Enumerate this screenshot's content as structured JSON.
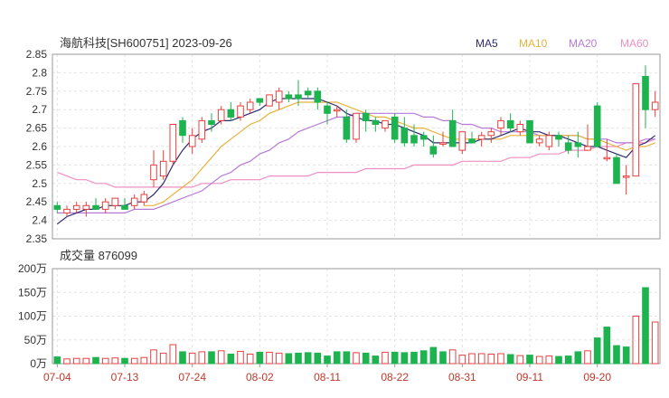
{
  "header": {
    "title": "海航科技[SH600751] 2023-09-26"
  },
  "volume_panel": {
    "label": "成交量 876099"
  },
  "colors": {
    "up": "#e8413f",
    "down": "#1db34f",
    "ma5": "#2b2b6e",
    "ma10": "#e8b23a",
    "ma20": "#b57ad6",
    "ma60": "#ee8fc3",
    "grid": "#e4e4e4",
    "axis": "#999999",
    "date_label": "#c0392b"
  },
  "chart_data": [
    {
      "type": "candlestick",
      "title": "海航科技[SH600751] 2023-09-26",
      "ylim": [
        2.35,
        2.85
      ],
      "yticks": [
        "2.85",
        "2.8",
        "2.75",
        "2.7",
        "2.65",
        "2.6",
        "2.55",
        "2.5",
        "2.45",
        "2.4",
        "2.35"
      ],
      "xticks": [
        "07-04",
        "07-13",
        "07-24",
        "08-02",
        "08-11",
        "08-22",
        "08-31",
        "09-11",
        "09-20"
      ],
      "xtick_index": [
        0,
        7,
        14,
        21,
        28,
        35,
        42,
        49,
        56
      ],
      "grid": true,
      "legend": {
        "position": "top-right",
        "entries": [
          "MA5",
          "MA10",
          "MA20",
          "MA60"
        ]
      },
      "ohlc": [
        [
          2.44,
          2.45,
          2.42,
          2.43
        ],
        [
          2.42,
          2.44,
          2.41,
          2.43
        ],
        [
          2.43,
          2.45,
          2.42,
          2.44
        ],
        [
          2.43,
          2.45,
          2.41,
          2.44
        ],
        [
          2.44,
          2.46,
          2.43,
          2.43
        ],
        [
          2.43,
          2.46,
          2.42,
          2.45
        ],
        [
          2.44,
          2.46,
          2.43,
          2.46
        ],
        [
          2.44,
          2.46,
          2.43,
          2.43
        ],
        [
          2.44,
          2.47,
          2.43,
          2.46
        ],
        [
          2.45,
          2.48,
          2.44,
          2.47
        ],
        [
          2.51,
          2.59,
          2.49,
          2.55
        ],
        [
          2.52,
          2.59,
          2.51,
          2.56
        ],
        [
          2.56,
          2.66,
          2.55,
          2.66
        ],
        [
          2.67,
          2.68,
          2.61,
          2.63
        ],
        [
          2.6,
          2.65,
          2.58,
          2.63
        ],
        [
          2.62,
          2.68,
          2.61,
          2.67
        ],
        [
          2.67,
          2.69,
          2.64,
          2.66
        ],
        [
          2.67,
          2.71,
          2.66,
          2.7
        ],
        [
          2.7,
          2.72,
          2.67,
          2.68
        ],
        [
          2.68,
          2.72,
          2.67,
          2.71
        ],
        [
          2.7,
          2.73,
          2.69,
          2.72
        ],
        [
          2.73,
          2.73,
          2.71,
          2.72
        ],
        [
          2.71,
          2.74,
          2.71,
          2.74
        ],
        [
          2.72,
          2.76,
          2.7,
          2.75
        ],
        [
          2.74,
          2.75,
          2.72,
          2.73
        ],
        [
          2.74,
          2.78,
          2.71,
          2.73
        ],
        [
          2.75,
          2.76,
          2.73,
          2.74
        ],
        [
          2.75,
          2.76,
          2.7,
          2.72
        ],
        [
          2.71,
          2.72,
          2.66,
          2.69
        ],
        [
          2.7,
          2.71,
          2.68,
          2.7
        ],
        [
          2.68,
          2.7,
          2.61,
          2.62
        ],
        [
          2.62,
          2.69,
          2.61,
          2.69
        ],
        [
          2.69,
          2.7,
          2.64,
          2.67
        ],
        [
          2.67,
          2.68,
          2.64,
          2.66
        ],
        [
          2.65,
          2.67,
          2.64,
          2.67
        ],
        [
          2.68,
          2.69,
          2.61,
          2.62
        ],
        [
          2.65,
          2.68,
          2.6,
          2.61
        ],
        [
          2.63,
          2.66,
          2.6,
          2.61
        ],
        [
          2.63,
          2.64,
          2.6,
          2.62
        ],
        [
          2.6,
          2.63,
          2.57,
          2.58
        ],
        [
          2.61,
          2.64,
          2.6,
          2.61
        ],
        [
          2.67,
          2.7,
          2.6,
          2.6
        ],
        [
          2.59,
          2.64,
          2.58,
          2.64
        ],
        [
          2.62,
          2.64,
          2.61,
          2.61
        ],
        [
          2.62,
          2.64,
          2.6,
          2.63
        ],
        [
          2.63,
          2.65,
          2.61,
          2.64
        ],
        [
          2.65,
          2.68,
          2.63,
          2.67
        ],
        [
          2.67,
          2.69,
          2.64,
          2.65
        ],
        [
          2.64,
          2.67,
          2.63,
          2.66
        ],
        [
          2.67,
          2.67,
          2.61,
          2.61
        ],
        [
          2.61,
          2.63,
          2.6,
          2.62
        ],
        [
          2.6,
          2.64,
          2.59,
          2.63
        ],
        [
          2.63,
          2.64,
          2.6,
          2.62
        ],
        [
          2.61,
          2.63,
          2.58,
          2.59
        ],
        [
          2.61,
          2.64,
          2.57,
          2.6
        ],
        [
          2.59,
          2.66,
          2.59,
          2.6
        ],
        [
          2.71,
          2.72,
          2.6,
          2.6
        ],
        [
          2.57,
          2.62,
          2.56,
          2.57
        ],
        [
          2.57,
          2.58,
          2.5,
          2.5
        ],
        [
          2.52,
          2.55,
          2.47,
          2.52
        ],
        [
          2.52,
          2.77,
          2.52,
          2.77
        ],
        [
          2.79,
          2.82,
          2.65,
          2.7
        ],
        [
          2.7,
          2.75,
          2.68,
          2.72
        ]
      ],
      "ma5": [
        2.39,
        2.41,
        2.42,
        2.43,
        2.43,
        2.44,
        2.44,
        2.44,
        2.45,
        2.45,
        2.47,
        2.5,
        2.55,
        2.59,
        2.62,
        2.64,
        2.65,
        2.67,
        2.67,
        2.68,
        2.69,
        2.7,
        2.72,
        2.73,
        2.73,
        2.73,
        2.73,
        2.73,
        2.72,
        2.71,
        2.69,
        2.68,
        2.67,
        2.67,
        2.66,
        2.66,
        2.65,
        2.64,
        2.63,
        2.61,
        2.61,
        2.61,
        2.61,
        2.61,
        2.62,
        2.62,
        2.63,
        2.64,
        2.65,
        2.64,
        2.64,
        2.63,
        2.63,
        2.62,
        2.61,
        2.6,
        2.6,
        2.59,
        2.58,
        2.57,
        2.6,
        2.61,
        2.63
      ],
      "ma10": [
        null,
        null,
        null,
        null,
        null,
        null,
        null,
        null,
        null,
        2.44,
        2.44,
        2.45,
        2.47,
        2.49,
        2.51,
        2.54,
        2.57,
        2.6,
        2.62,
        2.64,
        2.66,
        2.67,
        2.69,
        2.7,
        2.71,
        2.72,
        2.72,
        2.72,
        2.72,
        2.72,
        2.71,
        2.7,
        2.69,
        2.68,
        2.68,
        2.67,
        2.66,
        2.65,
        2.65,
        2.64,
        2.63,
        2.62,
        2.62,
        2.62,
        2.62,
        2.62,
        2.62,
        2.63,
        2.63,
        2.63,
        2.63,
        2.63,
        2.63,
        2.63,
        2.63,
        2.62,
        2.62,
        2.61,
        2.6,
        2.59,
        2.6,
        2.6,
        2.61
      ],
      "ma20": [
        2.42,
        2.42,
        2.42,
        2.42,
        2.42,
        2.42,
        2.42,
        2.42,
        2.43,
        2.43,
        2.43,
        2.44,
        2.45,
        2.46,
        2.47,
        2.48,
        2.5,
        2.52,
        2.53,
        2.55,
        2.56,
        2.58,
        2.59,
        2.61,
        2.62,
        2.64,
        2.65,
        2.66,
        2.67,
        2.68,
        2.68,
        2.69,
        2.69,
        2.69,
        2.69,
        2.69,
        2.69,
        2.69,
        2.68,
        2.68,
        2.67,
        2.67,
        2.66,
        2.66,
        2.65,
        2.65,
        2.64,
        2.64,
        2.64,
        2.64,
        2.63,
        2.63,
        2.63,
        2.63,
        2.63,
        2.62,
        2.62,
        2.62,
        2.61,
        2.61,
        2.61,
        2.62,
        2.62
      ],
      "ma60": [
        2.53,
        2.52,
        2.51,
        2.51,
        2.5,
        2.5,
        2.49,
        2.49,
        2.49,
        2.49,
        2.49,
        2.49,
        2.49,
        2.49,
        2.49,
        2.5,
        2.5,
        2.5,
        2.51,
        2.51,
        2.51,
        2.51,
        2.52,
        2.52,
        2.52,
        2.52,
        2.52,
        2.53,
        2.53,
        2.53,
        2.53,
        2.53,
        2.54,
        2.54,
        2.54,
        2.54,
        2.54,
        2.55,
        2.55,
        2.55,
        2.55,
        2.55,
        2.56,
        2.56,
        2.56,
        2.56,
        2.56,
        2.57,
        2.57,
        2.57,
        2.58,
        2.58,
        2.58,
        2.59,
        2.59,
        2.59,
        2.6,
        2.6,
        2.6,
        2.61,
        2.61,
        2.61,
        2.62
      ]
    },
    {
      "type": "bar",
      "title": "成交量 876099",
      "ylim": [
        0,
        2000000
      ],
      "yticks": [
        "200万",
        "150万",
        "100万",
        "50万",
        "0万"
      ],
      "grid": true,
      "values": [
        140000,
        100000,
        110000,
        110000,
        130000,
        110000,
        120000,
        110000,
        110000,
        130000,
        290000,
        220000,
        400000,
        250000,
        220000,
        250000,
        250000,
        270000,
        200000,
        260000,
        200000,
        240000,
        240000,
        220000,
        210000,
        220000,
        230000,
        220000,
        160000,
        250000,
        250000,
        230000,
        220000,
        160000,
        240000,
        240000,
        230000,
        240000,
        270000,
        340000,
        250000,
        290000,
        180000,
        210000,
        210000,
        200000,
        210000,
        190000,
        170000,
        180000,
        150000,
        160000,
        150000,
        160000,
        250000,
        270000,
        540000,
        770000,
        380000,
        350000,
        1000000,
        1600000,
        876099
      ],
      "up": [
        false,
        true,
        true,
        true,
        false,
        true,
        true,
        false,
        true,
        true,
        true,
        true,
        true,
        false,
        true,
        true,
        false,
        true,
        false,
        true,
        true,
        false,
        true,
        true,
        false,
        false,
        false,
        false,
        false,
        false,
        false,
        true,
        false,
        false,
        true,
        false,
        false,
        false,
        false,
        false,
        false,
        true,
        true,
        true,
        true,
        true,
        true,
        false,
        true,
        false,
        true,
        true,
        false,
        false,
        false,
        true,
        false,
        false,
        false,
        false,
        true,
        false,
        true
      ]
    }
  ]
}
